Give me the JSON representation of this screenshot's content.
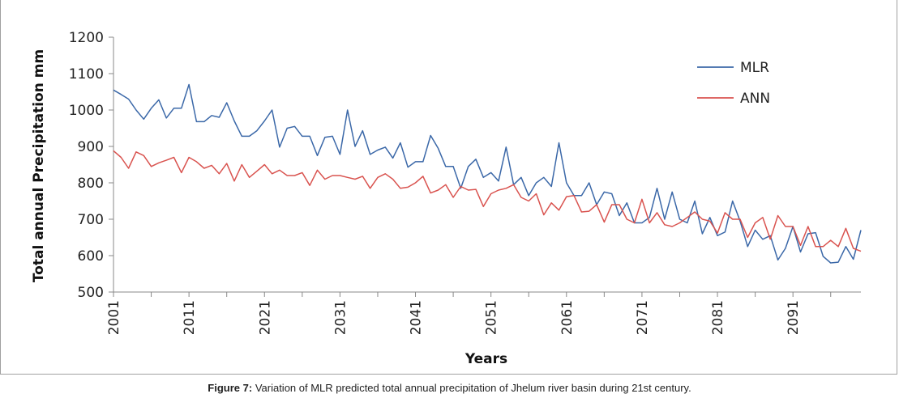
{
  "caption": {
    "label": "Figure 7:",
    "text": " Variation of MLR predicted total annual precipitation of Jhelum river basin during 21st century."
  },
  "chart_data": {
    "type": "line",
    "xlabel": "Years",
    "ylabel": "Total annual Precipitation mm",
    "ylim": [
      500,
      1200
    ],
    "yticks": [
      500,
      600,
      700,
      800,
      900,
      1000,
      1100,
      1200
    ],
    "xlim": [
      2001,
      2100
    ],
    "xticks": [
      2001,
      2011,
      2021,
      2031,
      2041,
      2051,
      2061,
      2071,
      2081,
      2091
    ],
    "grid": false,
    "legend": "top-right",
    "series": [
      {
        "name": "MLR",
        "color": "#3b68a8",
        "x": [
          2001,
          2002,
          2003,
          2004,
          2005,
          2006,
          2007,
          2008,
          2009,
          2010,
          2011,
          2012,
          2013,
          2014,
          2015,
          2016,
          2017,
          2018,
          2019,
          2020,
          2021,
          2022,
          2023,
          2024,
          2025,
          2026,
          2027,
          2028,
          2029,
          2030,
          2031,
          2032,
          2033,
          2034,
          2035,
          2036,
          2037,
          2038,
          2039,
          2040,
          2041,
          2042,
          2043,
          2044,
          2045,
          2046,
          2047,
          2048,
          2049,
          2050,
          2051,
          2052,
          2053,
          2054,
          2055,
          2056,
          2057,
          2058,
          2059,
          2060,
          2061,
          2062,
          2063,
          2064,
          2065,
          2066,
          2067,
          2068,
          2069,
          2070,
          2071,
          2072,
          2073,
          2074,
          2075,
          2076,
          2077,
          2078,
          2079,
          2080,
          2081,
          2082,
          2083,
          2084,
          2085,
          2086,
          2087,
          2088,
          2089,
          2090,
          2091,
          2092,
          2093,
          2094,
          2095,
          2096,
          2097,
          2098,
          2099,
          2100
        ],
        "values": [
          1055,
          1043,
          1030,
          1000,
          975,
          1005,
          1028,
          978,
          1005,
          1005,
          1070,
          968,
          968,
          985,
          980,
          1020,
          970,
          928,
          928,
          943,
          970,
          1000,
          898,
          950,
          955,
          928,
          928,
          875,
          925,
          928,
          878,
          1000,
          900,
          943,
          878,
          890,
          898,
          868,
          910,
          843,
          858,
          858,
          930,
          895,
          845,
          845,
          785,
          845,
          865,
          815,
          828,
          805,
          898,
          795,
          815,
          765,
          800,
          815,
          790,
          910,
          800,
          765,
          765,
          800,
          740,
          775,
          770,
          710,
          745,
          690,
          690,
          705,
          785,
          700,
          775,
          700,
          690,
          750,
          660,
          705,
          655,
          665,
          750,
          695,
          625,
          670,
          645,
          655,
          588,
          620,
          680,
          610,
          660,
          663,
          598,
          580,
          582,
          625,
          590,
          670
        ]
      },
      {
        "name": "ANN",
        "color": "#d9534f",
        "x": [
          2001,
          2002,
          2003,
          2004,
          2005,
          2006,
          2007,
          2008,
          2009,
          2010,
          2011,
          2012,
          2013,
          2014,
          2015,
          2016,
          2017,
          2018,
          2019,
          2020,
          2021,
          2022,
          2023,
          2024,
          2025,
          2026,
          2027,
          2028,
          2029,
          2030,
          2031,
          2032,
          2033,
          2034,
          2035,
          2036,
          2037,
          2038,
          2039,
          2040,
          2041,
          2042,
          2043,
          2044,
          2045,
          2046,
          2047,
          2048,
          2049,
          2050,
          2051,
          2052,
          2053,
          2054,
          2055,
          2056,
          2057,
          2058,
          2059,
          2060,
          2061,
          2062,
          2063,
          2064,
          2065,
          2066,
          2067,
          2068,
          2069,
          2070,
          2071,
          2072,
          2073,
          2074,
          2075,
          2076,
          2077,
          2078,
          2079,
          2080,
          2081,
          2082,
          2083,
          2084,
          2085,
          2086,
          2087,
          2088,
          2089,
          2090,
          2091,
          2092,
          2093,
          2094,
          2095,
          2096,
          2097,
          2098,
          2099,
          2100
        ],
        "values": [
          888,
          870,
          840,
          885,
          875,
          845,
          855,
          862,
          870,
          828,
          870,
          858,
          840,
          848,
          825,
          853,
          805,
          850,
          815,
          832,
          850,
          825,
          835,
          820,
          820,
          828,
          793,
          835,
          810,
          820,
          820,
          815,
          810,
          818,
          785,
          815,
          825,
          810,
          785,
          788,
          800,
          818,
          772,
          780,
          795,
          760,
          790,
          780,
          782,
          735,
          770,
          780,
          785,
          795,
          760,
          750,
          770,
          712,
          745,
          725,
          762,
          765,
          720,
          722,
          740,
          692,
          740,
          740,
          700,
          690,
          755,
          690,
          718,
          685,
          680,
          690,
          705,
          720,
          700,
          695,
          662,
          718,
          700,
          700,
          650,
          690,
          705,
          645,
          710,
          680,
          680,
          628,
          680,
          625,
          625,
          642,
          625,
          675,
          620,
          612
        ]
      }
    ]
  }
}
